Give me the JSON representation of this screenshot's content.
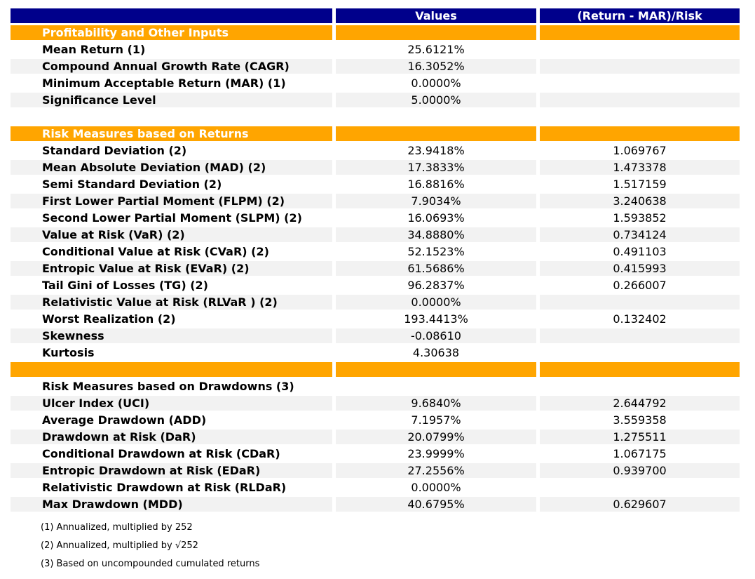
{
  "colors": {
    "header_bg": "#00008B",
    "section_bg": "#FFA500",
    "stripe_bg": "#F2F2F2",
    "header_text": "#FFFFFF"
  },
  "chart_data": {
    "type": "table",
    "title": "",
    "columns": [
      "",
      "Values",
      "(Return - MAR)/Risk"
    ],
    "rows": [
      {
        "kind": "section",
        "label": "Profitability and Other Inputs",
        "value": "",
        "ratio": ""
      },
      {
        "kind": "data",
        "label": "Mean Return (1)",
        "value": "25.6121%",
        "ratio": ""
      },
      {
        "kind": "data",
        "label": "Compound Annual Growth Rate (CAGR)",
        "value": "16.3052%",
        "ratio": ""
      },
      {
        "kind": "data",
        "label": "Minimum Acceptable Return (MAR) (1)",
        "value": "0.0000%",
        "ratio": ""
      },
      {
        "kind": "data",
        "label": "Significance Level",
        "value": "5.0000%",
        "ratio": ""
      },
      {
        "kind": "spacer",
        "label": "",
        "value": "",
        "ratio": ""
      },
      {
        "kind": "section",
        "label": "Risk Measures based on Returns",
        "value": "",
        "ratio": ""
      },
      {
        "kind": "data",
        "label": "Standard Deviation (2)",
        "value": "23.9418%",
        "ratio": "1.069767"
      },
      {
        "kind": "data",
        "label": "Mean Absolute Deviation (MAD) (2)",
        "value": "17.3833%",
        "ratio": "1.473378"
      },
      {
        "kind": "data",
        "label": "Semi Standard Deviation (2)",
        "value": "16.8816%",
        "ratio": "1.517159"
      },
      {
        "kind": "data",
        "label": "First Lower Partial Moment (FLPM) (2)",
        "value": "7.9034%",
        "ratio": "3.240638"
      },
      {
        "kind": "data",
        "label": "Second Lower Partial Moment (SLPM) (2)",
        "value": "16.0693%",
        "ratio": "1.593852"
      },
      {
        "kind": "data",
        "label": "Value at Risk (VaR) (2)",
        "value": "34.8880%",
        "ratio": "0.734124"
      },
      {
        "kind": "data",
        "label": "Conditional Value at Risk (CVaR) (2)",
        "value": "52.1523%",
        "ratio": "0.491103"
      },
      {
        "kind": "data",
        "label": "Entropic Value at Risk (EVaR) (2)",
        "value": "61.5686%",
        "ratio": "0.415993"
      },
      {
        "kind": "data",
        "label": "Tail Gini of Losses (TG) (2)",
        "value": "96.2837%",
        "ratio": "0.266007"
      },
      {
        "kind": "data",
        "label": "Relativistic Value at Risk (RLVaR ) (2)",
        "value": "0.0000%",
        "ratio": ""
      },
      {
        "kind": "data",
        "label": "Worst Realization (2)",
        "value": "193.4413%",
        "ratio": "0.132402"
      },
      {
        "kind": "data",
        "label": "Skewness",
        "value": "-0.08610",
        "ratio": ""
      },
      {
        "kind": "data",
        "label": "Kurtosis",
        "value": "4.30638",
        "ratio": ""
      },
      {
        "kind": "section",
        "label": "",
        "value": "",
        "ratio": ""
      },
      {
        "kind": "data",
        "label": "Risk Measures based on Drawdowns (3)",
        "value": "",
        "ratio": ""
      },
      {
        "kind": "data",
        "label": "Ulcer Index (UCI)",
        "value": "9.6840%",
        "ratio": "2.644792"
      },
      {
        "kind": "data",
        "label": "Average Drawdown (ADD)",
        "value": "7.1957%",
        "ratio": "3.559358"
      },
      {
        "kind": "data",
        "label": "Drawdown at Risk (DaR)",
        "value": "20.0799%",
        "ratio": "1.275511"
      },
      {
        "kind": "data",
        "label": "Conditional Drawdown at Risk (CDaR)",
        "value": "23.9999%",
        "ratio": "1.067175"
      },
      {
        "kind": "data",
        "label": "Entropic Drawdown at Risk (EDaR)",
        "value": "27.2556%",
        "ratio": "0.939700"
      },
      {
        "kind": "data",
        "label": "Relativistic Drawdown at Risk (RLDaR)",
        "value": "0.0000%",
        "ratio": ""
      },
      {
        "kind": "data",
        "label": "Max Drawdown (MDD)",
        "value": "40.6795%",
        "ratio": "0.629607"
      }
    ],
    "footnotes": [
      "(1) Annualized, multiplied by 252",
      "(2) Annualized, multiplied by √252",
      "(3) Based on uncompounded cumulated returns"
    ]
  }
}
